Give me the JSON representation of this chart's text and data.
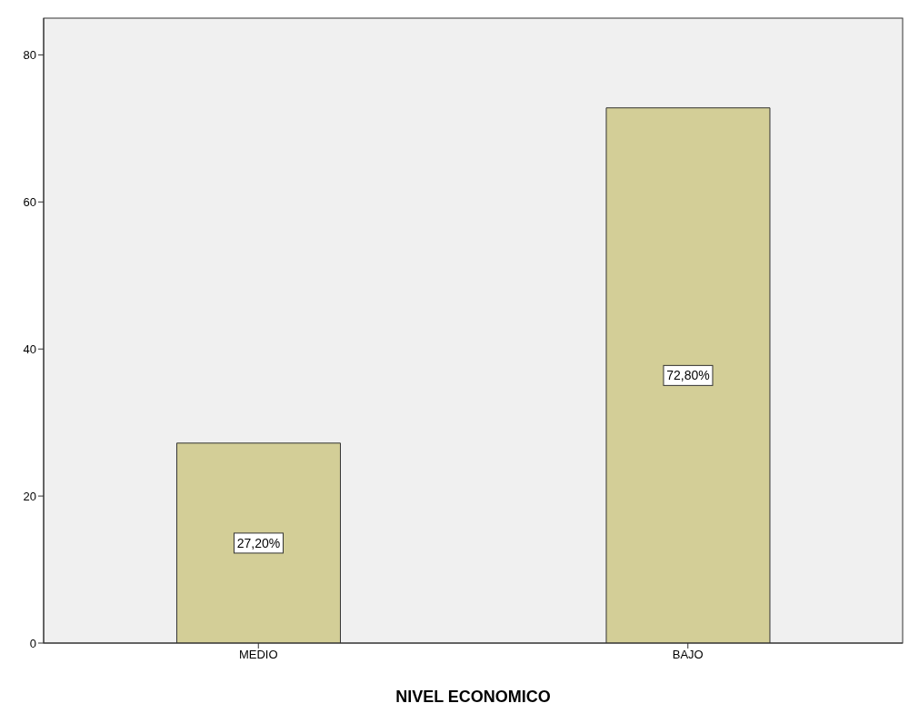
{
  "chart_data": {
    "type": "bar",
    "xlabel": "NIVEL ECONOMICO",
    "categories": [
      "MEDIO",
      "BAJO"
    ],
    "values": [
      27.2,
      72.8
    ],
    "value_labels": [
      "27,20%",
      "72,80%"
    ],
    "color": "#d3ce97",
    "ylim": [
      0,
      85
    ],
    "yticks": [
      0,
      20,
      40,
      60,
      80
    ]
  }
}
